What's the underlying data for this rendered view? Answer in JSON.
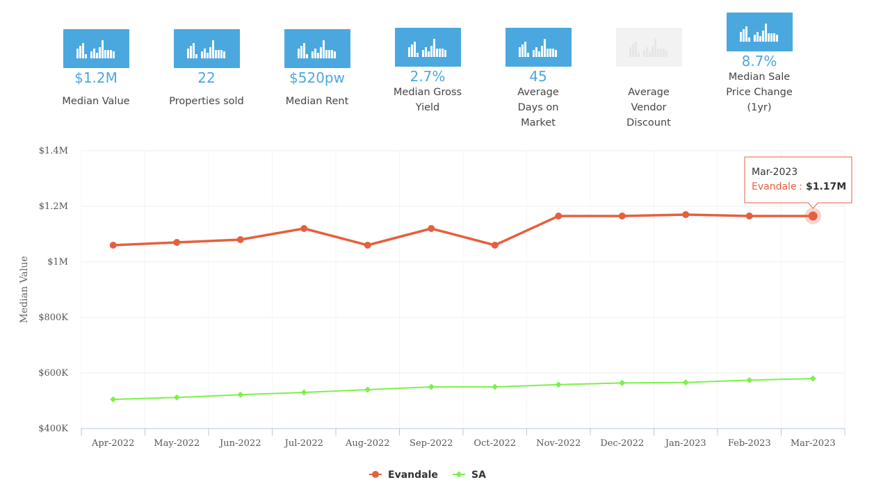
{
  "stats": [
    {
      "value": "$1.2M",
      "label": "Median Value",
      "icon": "bar-chart-icon",
      "active": true
    },
    {
      "value": "22",
      "label": "Properties sold",
      "icon": "bar-chart-icon",
      "active": true
    },
    {
      "value": "$520pw",
      "label": "Median Rent",
      "icon": "bar-chart-icon",
      "active": true
    },
    {
      "value": "2.7%",
      "label": "Median Gross Yield",
      "icon": "bar-chart-icon",
      "active": true
    },
    {
      "value": "45",
      "label": "Average Days on Market",
      "icon": "bar-chart-icon",
      "active": true
    },
    {
      "value": "",
      "label": "Average Vendor Discount",
      "icon": "bar-chart-icon",
      "active": false
    },
    {
      "value": "8.7%",
      "label": "Median Sale Price Change (1yr)",
      "icon": "bar-chart-icon",
      "active": true
    }
  ],
  "colors": {
    "tile": "#4ba8df",
    "tile_inactive": "#f2f2f2",
    "evandale": "#e4603f",
    "sa": "#7cf04b"
  },
  "chart_data": {
    "type": "line",
    "ylabel": "Median Value",
    "ylim": [
      400000,
      1400000
    ],
    "yticks": [
      "$400K",
      "$600K",
      "$800K",
      "$1M",
      "$1.2M",
      "$1.4M"
    ],
    "yticks_values": [
      400000,
      600000,
      800000,
      1000000,
      1200000,
      1400000
    ],
    "categories": [
      "Apr-2022",
      "May-2022",
      "Jun-2022",
      "Jul-2022",
      "Aug-2022",
      "Sep-2022",
      "Oct-2022",
      "Nov-2022",
      "Dec-2022",
      "Jan-2023",
      "Feb-2023",
      "Mar-2023"
    ],
    "series": [
      {
        "name": "Evandale",
        "color": "#e4603f",
        "marker": "circle",
        "values": [
          1060000,
          1070000,
          1080000,
          1120000,
          1060000,
          1120000,
          1060000,
          1165000,
          1165000,
          1170000,
          1165000,
          1165000
        ]
      },
      {
        "name": "SA",
        "color": "#7cf04b",
        "marker": "diamond",
        "values": [
          505000,
          512000,
          522000,
          530000,
          540000,
          550000,
          550000,
          558000,
          564000,
          566000,
          574000,
          580000
        ]
      }
    ],
    "grid": true,
    "legend": "bottom-center",
    "tooltip": {
      "category": "Mar-2023",
      "series": "Evandale",
      "value_label": "$1.17M"
    }
  }
}
